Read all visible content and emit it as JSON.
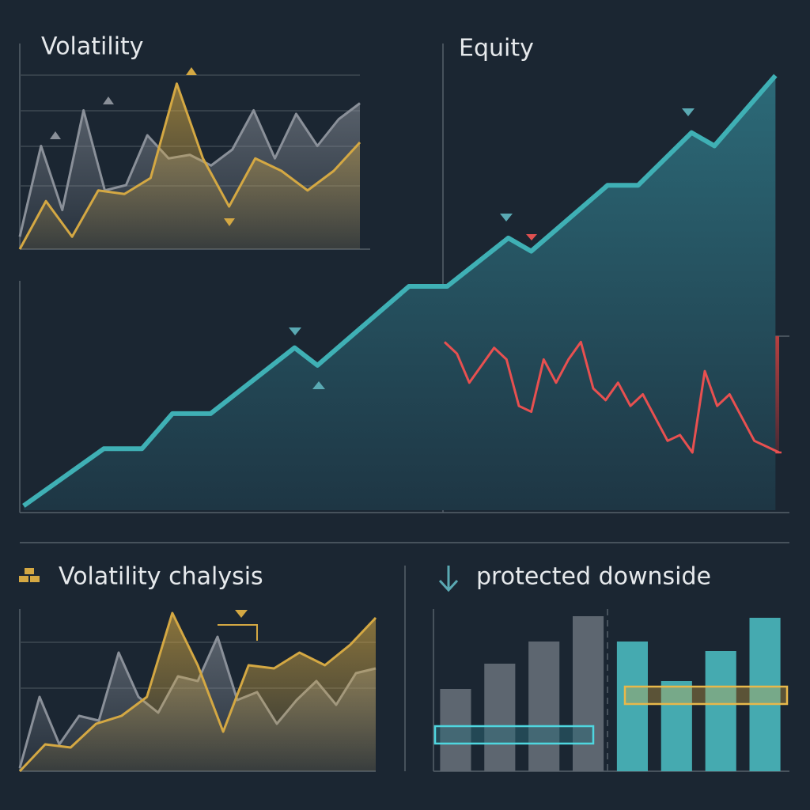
{
  "chart_data": [
    {
      "type": "area",
      "title": "Volatility",
      "ylim": [
        0,
        100
      ],
      "series": [
        {
          "color": "#8a9099",
          "values": [
            7,
            58,
            22,
            78,
            33,
            36,
            64,
            51,
            53,
            47,
            56,
            78,
            51,
            76,
            58,
            73,
            82
          ]
        },
        {
          "color": "#d4a843",
          "values": [
            0,
            27,
            7,
            33,
            31,
            40,
            93,
            51,
            24,
            51,
            44,
            33,
            44,
            60
          ]
        }
      ]
    },
    {
      "type": "area",
      "title": "Equity",
      "xlim": [
        0,
        100
      ],
      "ylim": [
        0,
        100
      ],
      "x": [
        0.5,
        11,
        16,
        20,
        25,
        36,
        39,
        51,
        56,
        64,
        67,
        77,
        81,
        88,
        91,
        99
      ],
      "series": [
        {
          "color": "#3fb0b5",
          "values": [
            1,
            14,
            14,
            22,
            22,
            37,
            33,
            51,
            51,
            62,
            59,
            74,
            74,
            86,
            83,
            99
          ]
        }
      ]
    },
    {
      "type": "line",
      "ylim": [
        -100,
        0
      ],
      "series": [
        {
          "color": "#e85050",
          "values": [
            -5,
            -15,
            -40,
            -25,
            -10,
            -20,
            -60,
            -65,
            -20,
            -40,
            -20,
            -5,
            -45,
            -55,
            -40,
            -60,
            -50,
            -70,
            -90,
            -85,
            -100,
            -30,
            -60,
            -50,
            -70,
            -90,
            -95,
            -100
          ]
        }
      ]
    },
    {
      "type": "area",
      "title": "Volatility chalysis",
      "ylim": [
        0,
        100
      ],
      "series": [
        {
          "color": "#8a9099",
          "values": [
            2,
            47,
            17,
            35,
            32,
            75,
            47,
            37,
            60,
            57,
            85,
            45,
            50,
            30,
            45,
            57,
            42,
            62,
            65
          ]
        },
        {
          "color": "#d4a843",
          "values": [
            0,
            17,
            15,
            30,
            35,
            47,
            100,
            67,
            25,
            67,
            65,
            75,
            67,
            80,
            97
          ]
        }
      ]
    },
    {
      "type": "bar",
      "title": "protected downside",
      "ylim": [
        0,
        100
      ],
      "series": [
        {
          "color": "#5d6670",
          "values": [
            52,
            68,
            82,
            98
          ]
        },
        {
          "color": "#45aab0",
          "values": [
            82,
            57,
            76,
            97
          ]
        }
      ]
    }
  ]
}
